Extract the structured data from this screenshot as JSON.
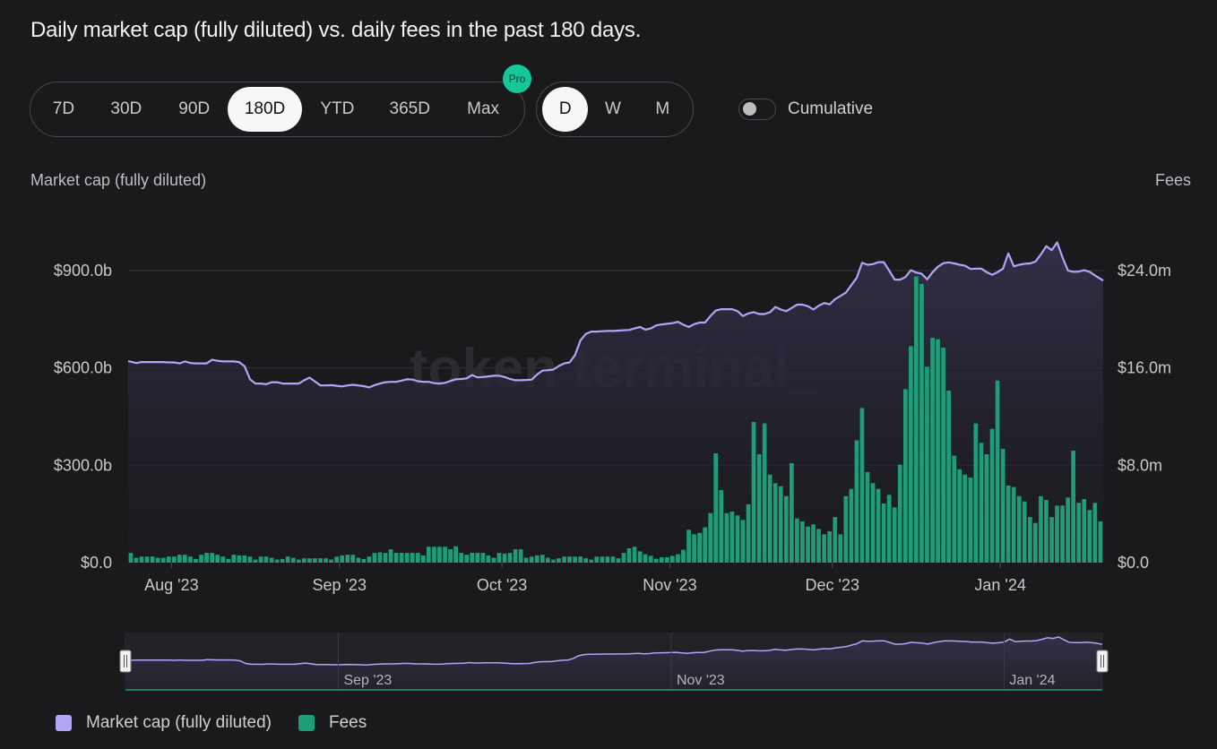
{
  "title": "Daily market cap (fully diluted) vs. daily fees in the past 180 days.",
  "range_buttons": [
    {
      "label": "7D",
      "active": false
    },
    {
      "label": "30D",
      "active": false
    },
    {
      "label": "90D",
      "active": false
    },
    {
      "label": "180D",
      "active": true
    },
    {
      "label": "YTD",
      "active": false
    },
    {
      "label": "365D",
      "active": false
    },
    {
      "label": "Max",
      "active": false
    }
  ],
  "pro_badge": "Pro",
  "granularity_buttons": [
    {
      "label": "D",
      "active": true
    },
    {
      "label": "W",
      "active": false
    },
    {
      "label": "M",
      "active": false
    }
  ],
  "cumulative": {
    "label": "Cumulative",
    "on": false
  },
  "watermark": "token terminal_",
  "colors": {
    "market_cap": "#b3a4f7",
    "fees": "#1e9e78",
    "background": "#1a1a1c"
  },
  "legend": [
    {
      "label": "Market cap (fully diluted)",
      "color": "#b3a4f7"
    },
    {
      "label": "Fees",
      "color": "#1e9e78"
    }
  ],
  "navigator": {
    "tick_labels": [
      "Sep '23",
      "Nov '23",
      "Jan '24"
    ]
  },
  "chart_data": {
    "type": "bar+line",
    "title": "Daily market cap (fully diluted) vs. daily fees in the past 180 days.",
    "x_start": "2023-07-24",
    "x_end": "2024-01-19",
    "x_tick_labels": [
      "Aug '23",
      "Sep '23",
      "Oct '23",
      "Nov '23",
      "Dec '23",
      "Jan '24"
    ],
    "y_left": {
      "label": "Market cap (fully diluted)",
      "unit": "b",
      "ticks": [
        0,
        300,
        600,
        900
      ],
      "tick_labels": [
        "$0.0",
        "$300.0b",
        "$600.0b",
        "$900.0b"
      ],
      "range": [
        0,
        1200
      ]
    },
    "y_right": {
      "label": "Fees",
      "unit": "m",
      "ticks": [
        0,
        8,
        16,
        24
      ],
      "tick_labels": [
        "$0.0",
        "$8.0m",
        "$16.0m",
        "$24.0m"
      ],
      "range": [
        0,
        32
      ]
    },
    "grid": true,
    "legend_position": "bottom-left",
    "series": [
      {
        "name": "Market cap (fully diluted)",
        "type": "line",
        "axis": "left",
        "values": [
          621,
          615,
          618,
          618,
          618,
          618,
          618,
          617,
          617,
          614,
          620,
          615,
          614,
          614,
          614,
          625,
          622,
          620,
          620,
          620,
          618,
          605,
          565,
          552,
          552,
          550,
          556,
          556,
          552,
          552,
          552,
          552,
          562,
          570,
          558,
          546,
          546,
          547,
          545,
          543,
          546,
          548,
          546,
          544,
          540,
          547,
          552,
          556,
          557,
          557,
          561,
          565,
          564,
          559,
          557,
          557,
          553,
          552,
          554,
          560,
          565,
          566,
          568,
          578,
          571,
          572,
          574,
          576,
          576,
          572,
          566,
          562,
          562,
          563,
          564,
          580,
          592,
          593,
          595,
          606,
          614,
          617,
          640,
          685,
          705,
          712,
          712,
          713,
          714,
          714,
          715,
          716,
          717,
          722,
          726,
          718,
          722,
          731,
          734,
          736,
          738,
          742,
          733,
          726,
          735,
          740,
          740,
          760,
          777,
          781,
          781,
          781,
          775,
          760,
          768,
          772,
          766,
          766,
          772,
          788,
          780,
          775,
          785,
          795,
          795,
          790,
          780,
          792,
          800,
          796,
          812,
          822,
          832,
          855,
          878,
          924,
          918,
          920,
          926,
          926,
          900,
          872,
          872,
          880,
          901,
          894,
          890,
          873,
          895,
          912,
          923,
          925,
          922,
          918,
          915,
          905,
          906,
          906,
          895,
          887,
          895,
          906,
          953,
          913,
          918,
          921,
          922,
          928,
          950,
          975,
          963,
          987,
          940,
          900,
          896,
          897,
          901,
          896,
          885,
          869
        ]
      },
      {
        "name": "Fees",
        "type": "bar",
        "axis": "right",
        "values": [
          0.8,
          0.4,
          0.5,
          0.5,
          0.5,
          0.4,
          0.4,
          0.5,
          0.5,
          0.65,
          0.65,
          0.5,
          0.3,
          0.65,
          0.8,
          0.8,
          0.65,
          0.5,
          0.3,
          0.65,
          0.6,
          0.6,
          0.5,
          0.25,
          0.5,
          0.5,
          0.4,
          0.25,
          0.3,
          0.5,
          0.4,
          0.25,
          0.35,
          0.35,
          0.35,
          0.35,
          0.35,
          0.25,
          0.5,
          0.6,
          0.65,
          0.65,
          0.4,
          0.3,
          0.5,
          0.8,
          0.85,
          0.8,
          1.1,
          0.8,
          0.8,
          0.8,
          0.8,
          0.8,
          0.6,
          1.3,
          1.3,
          1.3,
          1.3,
          1.1,
          1.35,
          0.8,
          0.65,
          0.8,
          0.8,
          0.8,
          0.6,
          0.4,
          0.8,
          0.75,
          0.8,
          1.1,
          1.1,
          0.4,
          0.5,
          0.6,
          0.65,
          0.4,
          0.25,
          0.35,
          0.5,
          0.5,
          0.5,
          0.5,
          0.35,
          0.25,
          0.5,
          0.5,
          0.5,
          0.5,
          0.35,
          0.8,
          1.18,
          1.3,
          0.93,
          0.69,
          0.56,
          0.32,
          0.44,
          0.44,
          0.56,
          0.69,
          1.06,
          2.7,
          2.33,
          2.45,
          2.9,
          4.07,
          8.98,
          5.96,
          4.07,
          4.2,
          3.88,
          3.51,
          4.79,
          11.56,
          8.91,
          11.44,
          7.24,
          6.53,
          6.28,
          5.47,
          8.17,
          3.63,
          3.39,
          2.97,
          3.14,
          2.77,
          2.33,
          2.58,
          3.75,
          2.33,
          5.47,
          6.06,
          10.06,
          12.71,
          7.44,
          6.53,
          6.06,
          4.86,
          5.57,
          4.54,
          8.05,
          14.26,
          17.79,
          23.51,
          22.9,
          16.1,
          18.48,
          18.36,
          17.67,
          14.13,
          8.79,
          7.68,
          7.24,
          6.99,
          11.44,
          9.84,
          8.91,
          10.99,
          14.97,
          9.35,
          6.33,
          6.21,
          5.47,
          5.03,
          3.75,
          3.26,
          5.47,
          5.15,
          3.75,
          4.69,
          4.69,
          5.35,
          9.2,
          4.91,
          5.23,
          4.32,
          4.91,
          3.39
        ]
      }
    ]
  }
}
